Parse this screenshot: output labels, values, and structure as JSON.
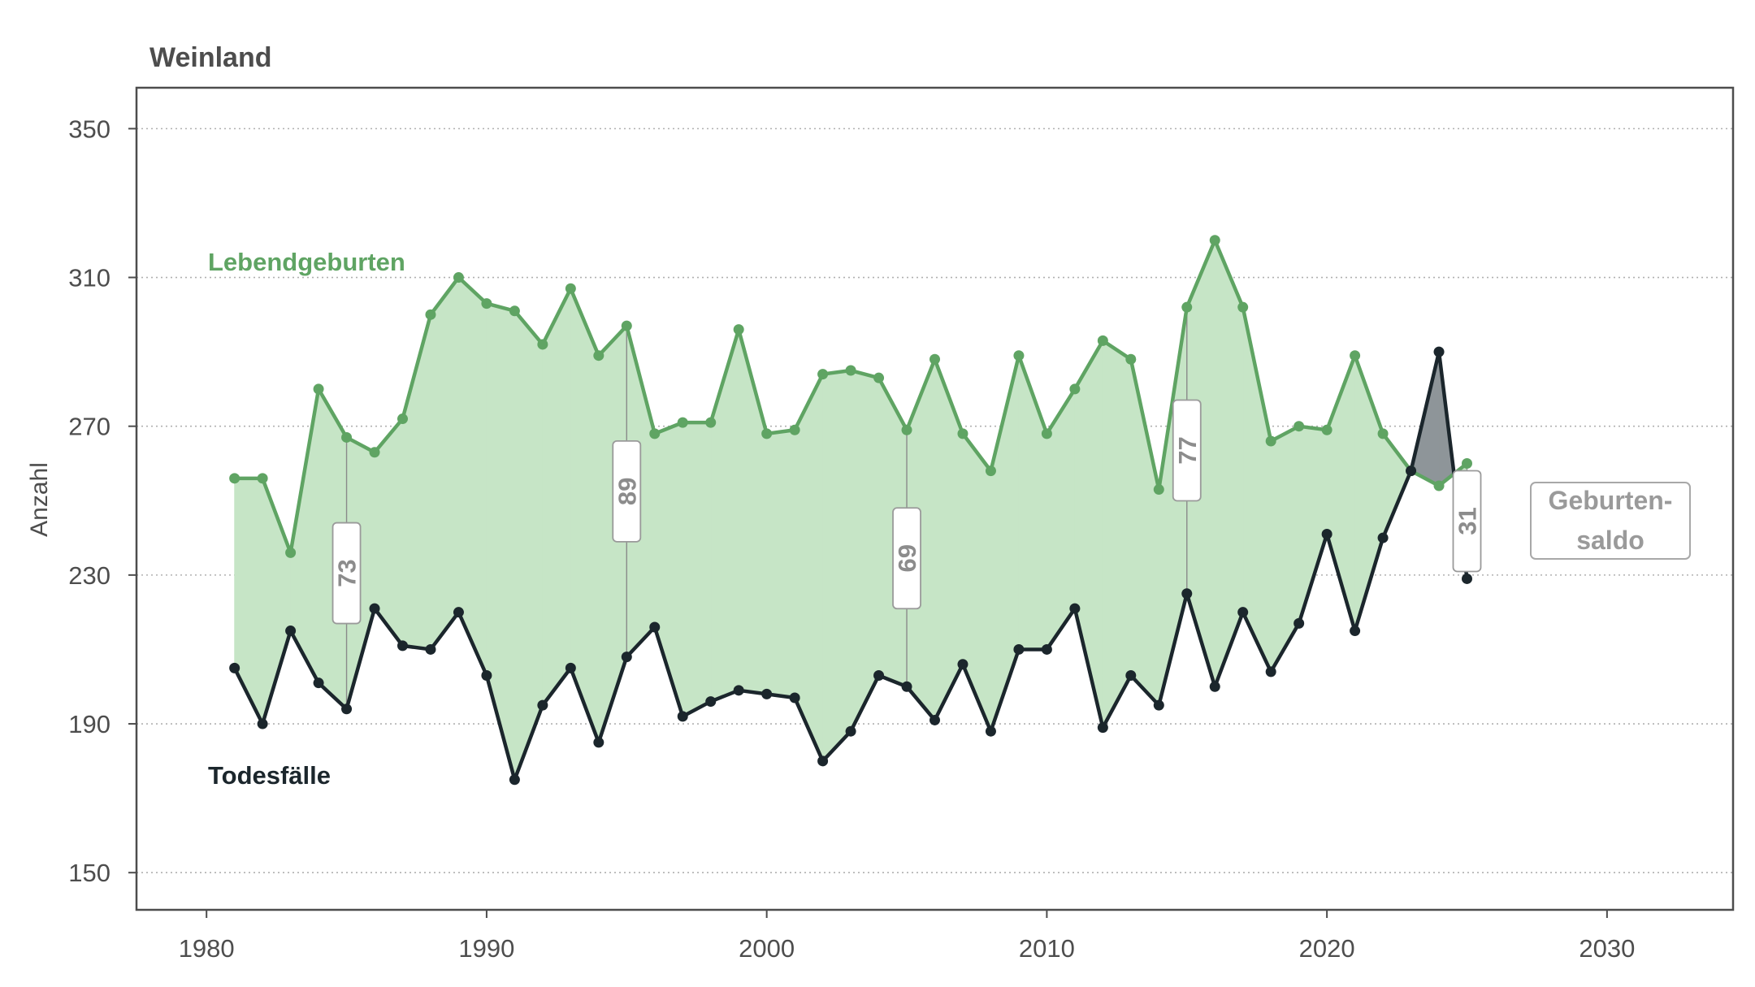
{
  "chart_data": {
    "type": "line",
    "title": "Weinland",
    "ylabel": "Anzahl",
    "xlabel": "",
    "xlim": [
      1977.5,
      2034.5
    ],
    "ylim": [
      140,
      361
    ],
    "x_ticks": [
      1980,
      1990,
      2000,
      2010,
      2020,
      2030
    ],
    "y_ticks": [
      150,
      190,
      230,
      270,
      310,
      350
    ],
    "grid": "horizontal dotted",
    "x": [
      1981,
      1982,
      1983,
      1984,
      1985,
      1986,
      1987,
      1988,
      1989,
      1990,
      1991,
      1992,
      1993,
      1994,
      1995,
      1996,
      1997,
      1998,
      1999,
      2000,
      2001,
      2002,
      2003,
      2004,
      2005,
      2006,
      2007,
      2008,
      2009,
      2010,
      2011,
      2012,
      2013,
      2014,
      2015,
      2016,
      2017,
      2018,
      2019,
      2020,
      2021,
      2022,
      2023,
      2024,
      2025
    ],
    "series": [
      {
        "name": "Lebendgeburten",
        "color": "#5fa463",
        "values": [
          256,
          256,
          236,
          280,
          267,
          263,
          272,
          300,
          310,
          303,
          301,
          292,
          307,
          289,
          297,
          268,
          271,
          271,
          296,
          268,
          269,
          284,
          285,
          283,
          269,
          288,
          268,
          258,
          289,
          268,
          280,
          293,
          288,
          253,
          302,
          320,
          302,
          266,
          270,
          269,
          289,
          268,
          258,
          254,
          260
        ]
      },
      {
        "name": "Todesfälle",
        "color": "#1b262c",
        "values": [
          205,
          190,
          215,
          201,
          194,
          221,
          211,
          210,
          220,
          203,
          175,
          195,
          205,
          185,
          208,
          216,
          192,
          196,
          199,
          198,
          197,
          180,
          188,
          203,
          200,
          191,
          206,
          188,
          210,
          210,
          221,
          189,
          203,
          195,
          225,
          200,
          220,
          204,
          217,
          241,
          215,
          240,
          258,
          290,
          229
        ]
      }
    ],
    "fill_positive_color": "#c6e5c6",
    "fill_negative_color": "#8e9599",
    "saldo_labels": [
      {
        "x": 1985,
        "value": "73"
      },
      {
        "x": 1995,
        "value": "89"
      },
      {
        "x": 2005,
        "value": "69"
      },
      {
        "x": 2015,
        "value": "77"
      },
      {
        "x": 2025,
        "value": "31"
      }
    ],
    "series_label_births": "Lebendgeburten",
    "series_label_deaths": "Todesfälle",
    "legend_saldo_line1": "Geburten-",
    "legend_saldo_line2": "saldo"
  }
}
